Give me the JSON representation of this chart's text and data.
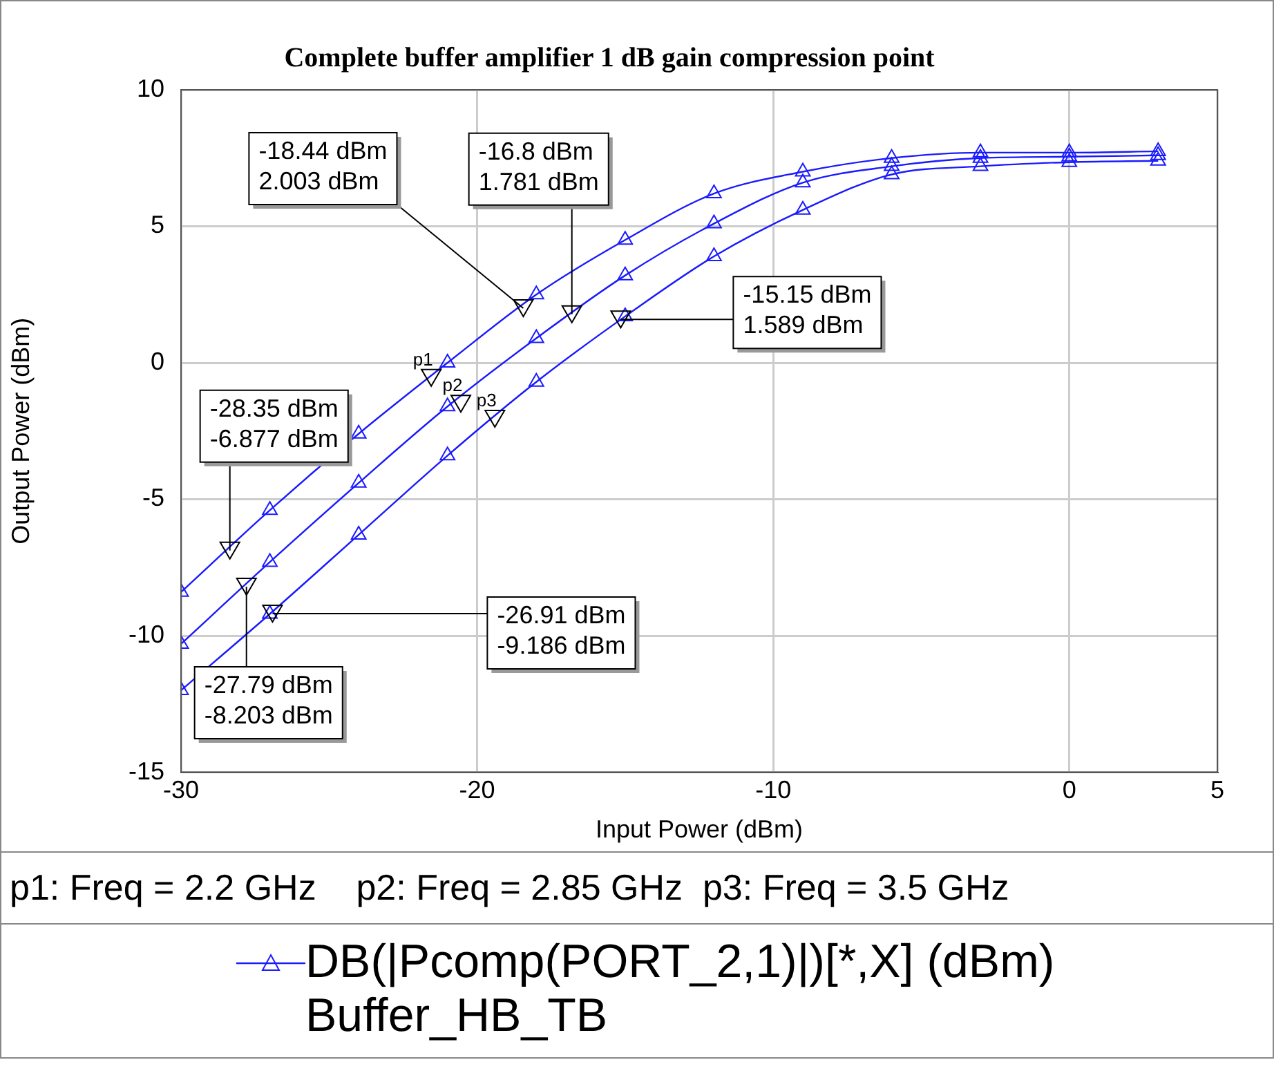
{
  "chart_data": {
    "type": "line",
    "title": "Complete buffer amplifier 1 dB gain compression point",
    "xlabel": "Input Power (dBm)",
    "ylabel": "Output Power (dBm)",
    "x": [
      -30,
      -27,
      -24,
      -21,
      -18,
      -15,
      -12,
      -9,
      -6,
      -3,
      0,
      3
    ],
    "series": [
      {
        "name": "DB(|Pcomp(PORT_2,1)|)[*,X] (dBm)",
        "color": "#1a1aff",
        "values": [
          -8.4,
          -5.4,
          -2.6,
          0.0,
          2.5,
          4.5,
          6.2,
          7.0,
          7.5,
          7.7,
          7.7,
          7.75
        ]
      },
      {
        "color": "#1a1aff",
        "values": [
          -10.3,
          -7.3,
          -4.4,
          -1.6,
          0.9,
          3.2,
          5.1,
          6.6,
          7.2,
          7.5,
          7.55,
          7.6
        ]
      },
      {
        "color": "#1a1aff",
        "values": [
          -12.0,
          -9.2,
          -6.3,
          -3.4,
          -0.7,
          1.7,
          3.9,
          5.6,
          6.9,
          7.2,
          7.35,
          7.4
        ]
      }
    ],
    "xlim": [
      -30,
      5
    ],
    "xticks": [
      -30,
      -20,
      -10,
      0,
      5
    ],
    "ylim": [
      -15,
      10
    ],
    "yticks": [
      -15,
      -10,
      -5,
      0,
      5,
      10
    ],
    "grid": true,
    "legend": "bottom",
    "marker": "triangle",
    "line_style": "solid",
    "annotations": [
      {
        "text": "-18.44 dBm\n2.003 dBm",
        "x": -18.44,
        "y": 2.003
      },
      {
        "text": "-16.8 dBm\n1.781 dBm",
        "x": -16.8,
        "y": 1.781
      },
      {
        "text": "-15.15 dBm\n1.589 dBm",
        "x": -15.15,
        "y": 1.589
      },
      {
        "text": "-28.35 dBm\n-6.877 dBm",
        "x": -28.35,
        "y": -6.877
      },
      {
        "text": "-26.91 dBm\n-9.186 dBm",
        "x": -26.91,
        "y": -9.186
      },
      {
        "text": "-27.79 dBm\n-8.203 dBm",
        "x": -27.79,
        "y": -8.203
      },
      {
        "text": "p1",
        "x": -21.55,
        "y": -0.55
      },
      {
        "text": "p2",
        "x": -20.55,
        "y": -1.5
      },
      {
        "text": "p3",
        "x": -19.4,
        "y": -2.05
      },
      "p1: Freq = 2.2 GHz    p2: Freq = 2.85 GHz  p3: Freq = 3.5 GHz",
      "Buffer_HB_TB"
    ]
  }
}
